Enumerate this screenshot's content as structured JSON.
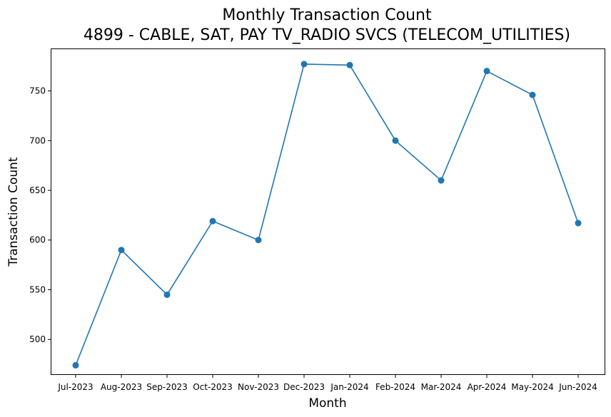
{
  "chart_data": {
    "type": "line",
    "title": "Monthly Transaction Count",
    "subtitle": "4899 - CABLE, SAT, PAY TV_RADIO SVCS (TELECOM_UTILITIES)",
    "xlabel": "Month",
    "ylabel": "Transaction Count",
    "categories": [
      "Jul-2023",
      "Aug-2023",
      "Sep-2023",
      "Oct-2023",
      "Nov-2023",
      "Dec-2023",
      "Jan-2024",
      "Feb-2024",
      "Mar-2024",
      "Apr-2024",
      "May-2024",
      "Jun-2024"
    ],
    "series": [
      {
        "values": [
          474,
          590,
          545,
          619,
          600,
          777,
          776,
          700,
          660,
          770,
          746,
          617
        ],
        "color": "#1f77b4"
      }
    ],
    "yticks": [
      500,
      550,
      600,
      650,
      700,
      750
    ],
    "ylim": [
      465,
      792
    ],
    "grid": false,
    "legend": "none",
    "marker": "circle"
  }
}
